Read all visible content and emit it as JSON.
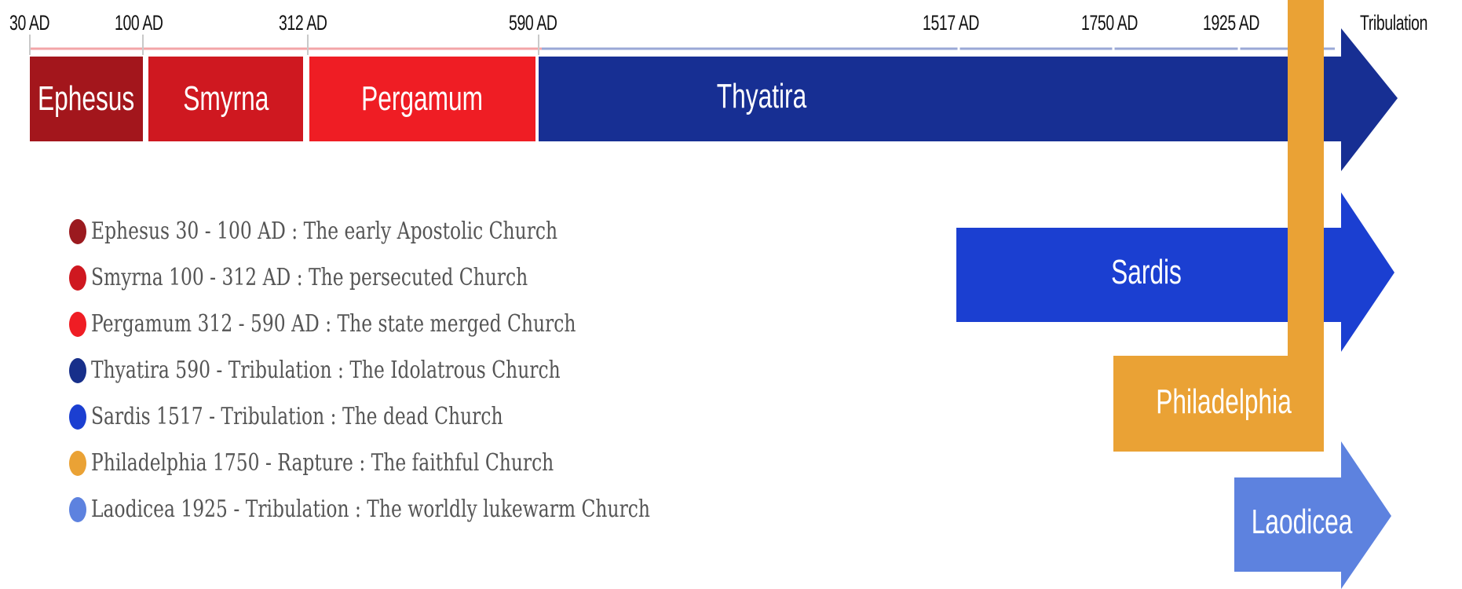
{
  "timeline": {
    "ticks": [
      "30 AD",
      "100 AD",
      "312 AD",
      "590 AD",
      "1517 AD",
      "1750 AD",
      "1925 AD",
      "Tribulation"
    ]
  },
  "segments": [
    {
      "label": "Ephesus",
      "color": "#a3161c"
    },
    {
      "label": "Smyrna",
      "color": "#cf1820"
    },
    {
      "label": "Pergamum",
      "color": "#ef1d24"
    }
  ],
  "arrows": {
    "thyatira": {
      "label": "Thyatira",
      "color": "#172f93"
    },
    "sardis": {
      "label": "Sardis",
      "color": "#1b3fd1"
    },
    "philadelphia": {
      "label": "Philadelphia",
      "color": "#eaa235"
    },
    "laodicea": {
      "label": "Laodicea",
      "color": "#5d82df"
    }
  },
  "legend": [
    {
      "text": "Ephesus 30 - 100 AD : The early Apostolic Church",
      "color": "#9b1a1f"
    },
    {
      "text": "Smyrna 100 - 312 AD : The persecuted Church",
      "color": "#cf1820"
    },
    {
      "text": "Pergamum 312 - 590 AD : The state merged Church",
      "color": "#ef1d24"
    },
    {
      "text": "Thyatira 590 - Tribulation : The Idolatrous Church",
      "color": "#172f8a"
    },
    {
      "text": "Sardis 1517 - Tribulation : The dead Church",
      "color": "#1b3fd1"
    },
    {
      "text": "Philadelphia 1750 - Rapture : The faithful Church",
      "color": "#eaa235"
    },
    {
      "text": "Laodicea 1925 - Tribulation : The worldly lukewarm Church",
      "color": "#5d82df"
    }
  ]
}
